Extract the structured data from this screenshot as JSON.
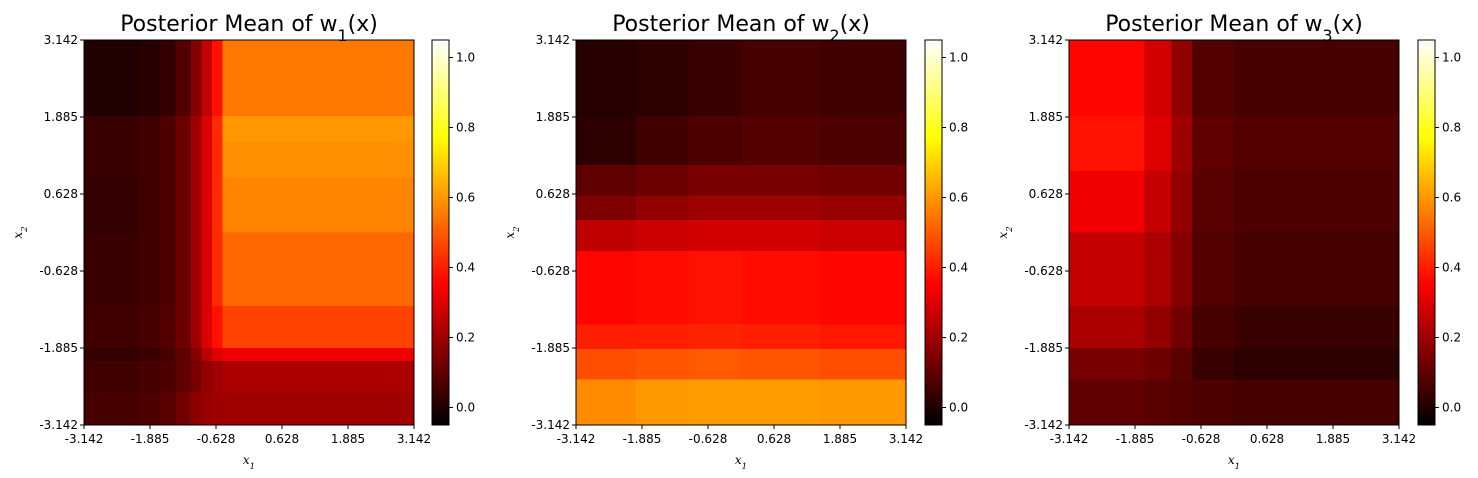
{
  "chart_data": [
    {
      "type": "heatmap",
      "title": "Posterior Mean of w",
      "title_sub": "1",
      "title_arg": "(x)",
      "xlabel": "x",
      "xlabel_sub": "1",
      "ylabel": "x",
      "ylabel_sub": "2",
      "xticks": [
        "-3.142",
        "-1.885",
        "-0.628",
        "0.628",
        "1.885",
        "3.142"
      ],
      "yticks": [
        "3.142",
        "1.885",
        "0.628",
        "-0.628",
        "-1.885",
        "-3.142"
      ],
      "xlim": [
        -3.142,
        3.142
      ],
      "ylim": [
        -3.142,
        3.142
      ],
      "colorbar": {
        "min": -0.05,
        "max": 1.05,
        "ticks": [
          "0.0",
          "0.2",
          "0.4",
          "0.6",
          "0.8",
          "1.0"
        ],
        "tick_values": [
          0.0,
          0.2,
          0.4,
          0.6,
          0.8,
          1.0
        ],
        "colormap": "hot"
      },
      "x_bins": [
        -3.142,
        -2.1,
        -1.7,
        -1.4,
        -1.1,
        -0.9,
        -0.7,
        -0.5,
        3.142
      ],
      "y_bins": [
        3.142,
        1.9,
        1.5,
        0.9,
        0.0,
        -1.2,
        -1.885,
        -2.1,
        -2.6,
        -3.142
      ],
      "values": [
        [
          0.0,
          0.01,
          0.03,
          0.08,
          0.16,
          0.26,
          0.38,
          0.55,
          0.6
        ],
        [
          0.04,
          0.05,
          0.07,
          0.12,
          0.2,
          0.3,
          0.42,
          0.6,
          0.66
        ],
        [
          0.04,
          0.05,
          0.07,
          0.12,
          0.2,
          0.3,
          0.42,
          0.59,
          0.64
        ],
        [
          0.03,
          0.05,
          0.07,
          0.12,
          0.2,
          0.3,
          0.42,
          0.57,
          0.58
        ],
        [
          0.04,
          0.05,
          0.07,
          0.12,
          0.2,
          0.3,
          0.42,
          0.52,
          0.52
        ],
        [
          0.05,
          0.06,
          0.08,
          0.12,
          0.2,
          0.3,
          0.38,
          0.46,
          0.46
        ],
        [
          0.03,
          0.04,
          0.06,
          0.1,
          0.16,
          0.24,
          0.3,
          0.33,
          0.33
        ],
        [
          0.05,
          0.06,
          0.07,
          0.1,
          0.14,
          0.18,
          0.2,
          0.22,
          0.22
        ],
        [
          0.06,
          0.07,
          0.09,
          0.13,
          0.17,
          0.19,
          0.2,
          0.2,
          0.2
        ]
      ]
    },
    {
      "type": "heatmap",
      "title": "Posterior Mean of w",
      "title_sub": "2",
      "title_arg": "(x)",
      "xlabel": "x",
      "xlabel_sub": "1",
      "ylabel": "x",
      "ylabel_sub": "2",
      "xticks": [
        "-3.142",
        "-1.885",
        "-0.628",
        "0.628",
        "1.885",
        "3.142"
      ],
      "yticks": [
        "3.142",
        "1.885",
        "0.628",
        "-0.628",
        "-1.885",
        "-3.142"
      ],
      "xlim": [
        -3.142,
        3.142
      ],
      "ylim": [
        -3.142,
        3.142
      ],
      "colorbar": {
        "min": -0.05,
        "max": 1.05,
        "ticks": [
          "0.0",
          "0.2",
          "0.4",
          "0.6",
          "0.8",
          "1.0"
        ],
        "tick_values": [
          0.0,
          0.2,
          0.4,
          0.6,
          0.8,
          1.0
        ],
        "colormap": "hot"
      },
      "x_bins": [
        -3.142,
        -2.0,
        -1.0,
        0.0,
        1.5,
        3.142
      ],
      "y_bins": [
        3.142,
        1.9,
        1.1,
        0.6,
        0.2,
        -0.3,
        -1.5,
        -1.9,
        -2.4,
        -3.142
      ],
      "values": [
        [
          0.01,
          0.02,
          0.04,
          0.06,
          0.05
        ],
        [
          0.02,
          0.05,
          0.07,
          0.08,
          0.07
        ],
        [
          0.1,
          0.12,
          0.14,
          0.14,
          0.13
        ],
        [
          0.15,
          0.18,
          0.2,
          0.2,
          0.19
        ],
        [
          0.25,
          0.27,
          0.28,
          0.28,
          0.27
        ],
        [
          0.36,
          0.37,
          0.38,
          0.37,
          0.36
        ],
        [
          0.4,
          0.4,
          0.41,
          0.4,
          0.39
        ],
        [
          0.48,
          0.49,
          0.5,
          0.49,
          0.48
        ],
        [
          0.58,
          0.6,
          0.61,
          0.61,
          0.6
        ]
      ]
    },
    {
      "type": "heatmap",
      "title": "Posterior Mean of w",
      "title_sub": "3",
      "title_arg": "(x)",
      "xlabel": "x",
      "xlabel_sub": "1",
      "ylabel": "x",
      "ylabel_sub": "2",
      "xticks": [
        "-3.142",
        "-1.885",
        "-0.628",
        "0.628",
        "1.885",
        "3.142"
      ],
      "yticks": [
        "3.142",
        "1.885",
        "0.628",
        "-0.628",
        "-1.885",
        "-3.142"
      ],
      "xlim": [
        -3.142,
        3.142
      ],
      "ylim": [
        -3.142,
        3.142
      ],
      "colorbar": {
        "min": -0.05,
        "max": 1.05,
        "ticks": [
          "0.0",
          "0.2",
          "0.4",
          "0.6",
          "0.8",
          "1.0"
        ],
        "tick_values": [
          0.0,
          0.2,
          0.4,
          0.6,
          0.8,
          1.0
        ],
        "colormap": "hot"
      },
      "x_bins": [
        -3.142,
        -1.7,
        -1.2,
        -0.8,
        0.0,
        3.142
      ],
      "y_bins": [
        3.142,
        1.9,
        1.0,
        0.0,
        -1.2,
        -1.885,
        -2.4,
        -3.142
      ],
      "values": [
        [
          0.36,
          0.28,
          0.18,
          0.08,
          0.06
        ],
        [
          0.38,
          0.3,
          0.2,
          0.1,
          0.08
        ],
        [
          0.33,
          0.26,
          0.18,
          0.09,
          0.07
        ],
        [
          0.26,
          0.22,
          0.16,
          0.08,
          0.06
        ],
        [
          0.22,
          0.18,
          0.13,
          0.06,
          0.04
        ],
        [
          0.14,
          0.12,
          0.09,
          0.04,
          0.02
        ],
        [
          0.1,
          0.09,
          0.08,
          0.07,
          0.06
        ]
      ]
    }
  ]
}
